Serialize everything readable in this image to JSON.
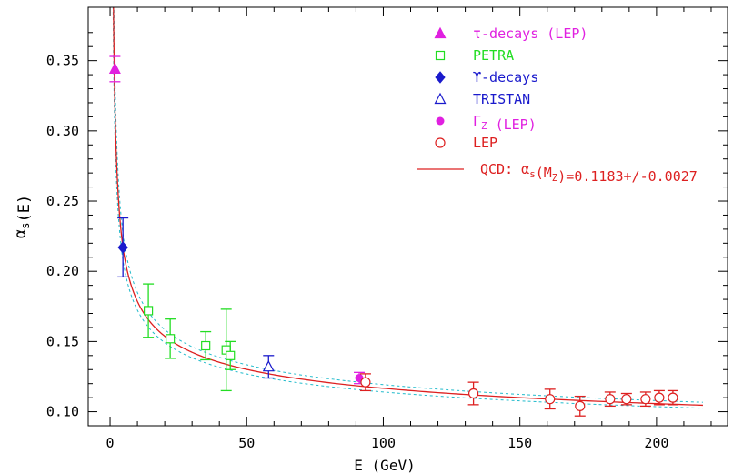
{
  "chart_data": {
    "type": "scatter",
    "xlabel": "E (GeV)",
    "ylabel": "αs(E)",
    "ylabel_main": "α",
    "ylabel_sub": "s",
    "ylabel_tail": "(E)",
    "xlim": [
      -8,
      226
    ],
    "ylim": [
      0.09,
      0.388
    ],
    "x_ticks": [
      0,
      50,
      100,
      150,
      200
    ],
    "x_tick_labels": [
      "0",
      "50",
      "100",
      "150",
      "200"
    ],
    "y_ticks": [
      0.1,
      0.15,
      0.2,
      0.25,
      0.3,
      0.35
    ],
    "y_tick_labels": [
      "0.10",
      "0.15",
      "0.20",
      "0.25",
      "0.30",
      "0.35"
    ],
    "grid": false,
    "legend_position": "top-right",
    "series": [
      {
        "name": "τ-decays (LEP)",
        "marker": "triangle-filled",
        "color": "#e020e0",
        "points": [
          {
            "x": 1.78,
            "y": 0.344,
            "err": 0.009
          }
        ]
      },
      {
        "name": "PETRA",
        "marker": "square-open",
        "color": "#22dd22",
        "points": [
          {
            "x": 14,
            "y": 0.172,
            "err": 0.019
          },
          {
            "x": 22,
            "y": 0.152,
            "err": 0.014
          },
          {
            "x": 35,
            "y": 0.147,
            "err": 0.01
          },
          {
            "x": 42.5,
            "y": 0.144,
            "err": 0.029
          },
          {
            "x": 44,
            "y": 0.14,
            "err": 0.01
          }
        ]
      },
      {
        "name": "ϒ-decays",
        "marker": "diamond-filled",
        "color": "#1a1acc",
        "points": [
          {
            "x": 4.7,
            "y": 0.217,
            "err": 0.021
          }
        ]
      },
      {
        "name": "TRISTAN",
        "marker": "triangle-open",
        "color": "#1a1acc",
        "points": [
          {
            "x": 58,
            "y": 0.132,
            "err": 0.008
          }
        ]
      },
      {
        "name": "ΓZ (LEP)",
        "marker": "circle-filled",
        "color": "#e020e0",
        "points": [
          {
            "x": 91.2,
            "y": 0.124,
            "err": 0.004
          }
        ]
      },
      {
        "name": "LEP",
        "marker": "circle-open",
        "color": "#dd2020",
        "points": [
          {
            "x": 93.5,
            "y": 0.121,
            "err": 0.006
          },
          {
            "x": 133,
            "y": 0.113,
            "err": 0.008
          },
          {
            "x": 161,
            "y": 0.109,
            "err": 0.007
          },
          {
            "x": 172,
            "y": 0.104,
            "err": 0.007
          },
          {
            "x": 183,
            "y": 0.109,
            "err": 0.005
          },
          {
            "x": 189,
            "y": 0.109,
            "err": 0.004
          },
          {
            "x": 196,
            "y": 0.109,
            "err": 0.005
          },
          {
            "x": 201,
            "y": 0.11,
            "err": 0.005
          },
          {
            "x": 206,
            "y": 0.11,
            "err": 0.005
          }
        ]
      }
    ],
    "legend": [
      {
        "main": "τ-decays (LEP)",
        "sub": "",
        "tail": "",
        "marker": "triangle-filled",
        "color": "#e020e0"
      },
      {
        "main": "PETRA",
        "sub": "",
        "tail": "",
        "marker": "square-open",
        "color": "#22dd22"
      },
      {
        "main": "ϒ-decays",
        "sub": "",
        "tail": "",
        "marker": "diamond-filled",
        "color": "#1a1acc"
      },
      {
        "main": "TRISTAN",
        "sub": "",
        "tail": "",
        "marker": "triangle-open",
        "color": "#1a1acc"
      },
      {
        "main": "Γ",
        "sub": "Z",
        "tail": " (LEP)",
        "marker": "circle-filled",
        "color": "#e020e0"
      },
      {
        "main": "LEP",
        "sub": "",
        "tail": "",
        "marker": "circle-open",
        "color": "#dd2020"
      }
    ],
    "fit": {
      "name": "QCD: αs(MZ)=0.1183+/-0.0027",
      "label_parts": [
        "QCD: ",
        "α",
        "s",
        "(M",
        "Z",
        ")=0.1183+/-0.0027"
      ],
      "color": "#dd2020",
      "band_color": "#22bbcc",
      "alpha_s_mz": 0.1183,
      "uncertainty": 0.0027,
      "mz": 91.19,
      "x_range": [
        1.0,
        217
      ]
    }
  }
}
